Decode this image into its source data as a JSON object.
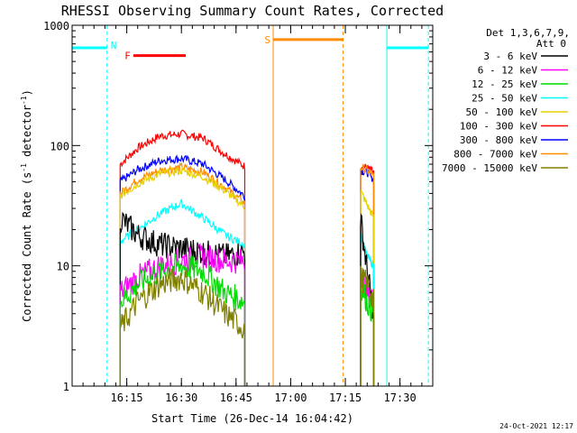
{
  "chart_data": {
    "type": "line",
    "title": "RHESSI Observing Summary Count Rates, Corrected",
    "xlabel": "Start Time (26-Dec-14 16:04:42)",
    "ylabel_main": "Corrected Count Rate (s",
    "ylabel_sup1": "-1",
    "ylabel_mid": " detector",
    "ylabel_sup2": "-1",
    "ylabel_end": ")",
    "yscale": "log",
    "ylim": [
      1,
      1000
    ],
    "xlim_minutes": [
      16.0,
      17.65
    ],
    "y_ticks": [
      {
        "v": 1,
        "label": "1"
      },
      {
        "v": 10,
        "label": "10"
      },
      {
        "v": 100,
        "label": "100"
      },
      {
        "v": 1000,
        "label": "1000"
      }
    ],
    "x_ticks": [
      {
        "v": 16.25,
        "label": "16:15"
      },
      {
        "v": 16.5,
        "label": "16:30"
      },
      {
        "v": 16.75,
        "label": "16:45"
      },
      {
        "v": 17.0,
        "label": "17:00"
      },
      {
        "v": 17.25,
        "label": "17:15"
      },
      {
        "v": 17.5,
        "label": "17:30"
      }
    ],
    "legend": {
      "header1": "Det 1,3,6,7,9,",
      "header2": "Att 0",
      "entries": [
        {
          "label": "3 - 6 keV",
          "color": "#000000"
        },
        {
          "label": "6 - 12 keV",
          "color": "#ff00ff"
        },
        {
          "label": "12 - 25 keV",
          "color": "#00dd00"
        },
        {
          "label": "25 - 50 keV",
          "color": "#00ffff"
        },
        {
          "label": "50 - 100 keV",
          "color": "#e8d000"
        },
        {
          "label": "100 - 300 keV",
          "color": "#ff0000"
        },
        {
          "label": "300 - 800 keV",
          "color": "#0000ff"
        },
        {
          "label": "800 - 7000 keV",
          "color": "#ff8c00"
        },
        {
          "label": "7000 - 15000 keV",
          "color": "#808000"
        }
      ]
    },
    "segments": [
      {
        "start": 16.22,
        "end": 16.79
      },
      {
        "start": 17.32,
        "end": 17.38
      }
    ],
    "series": [
      {
        "name": "100 - 300 keV",
        "color": "#ff0000",
        "seg1": [
          [
            16.22,
            70
          ],
          [
            16.3,
            95
          ],
          [
            16.4,
            120
          ],
          [
            16.5,
            125
          ],
          [
            16.6,
            115
          ],
          [
            16.7,
            85
          ],
          [
            16.79,
            67
          ]
        ],
        "seg2": [
          [
            17.32,
            68
          ],
          [
            17.35,
            65
          ],
          [
            17.38,
            60
          ]
        ]
      },
      {
        "name": "300 - 800 keV",
        "color": "#0000ff",
        "seg1": [
          [
            16.22,
            50
          ],
          [
            16.3,
            63
          ],
          [
            16.4,
            75
          ],
          [
            16.5,
            78
          ],
          [
            16.6,
            70
          ],
          [
            16.7,
            52
          ],
          [
            16.79,
            38
          ]
        ],
        "seg2": [
          [
            17.32,
            62
          ],
          [
            17.35,
            60
          ],
          [
            17.38,
            52
          ]
        ]
      },
      {
        "name": "800 - 7000 keV",
        "color": "#ff8c00",
        "seg1": [
          [
            16.22,
            40
          ],
          [
            16.3,
            52
          ],
          [
            16.4,
            62
          ],
          [
            16.5,
            66
          ],
          [
            16.6,
            60
          ],
          [
            16.7,
            45
          ],
          [
            16.79,
            33
          ]
        ],
        "seg2": [
          [
            17.32,
            66
          ],
          [
            17.35,
            62
          ],
          [
            17.38,
            55
          ]
        ]
      },
      {
        "name": "50 - 100 keV",
        "color": "#e8d000",
        "seg1": [
          [
            16.22,
            38
          ],
          [
            16.3,
            48
          ],
          [
            16.4,
            58
          ],
          [
            16.5,
            62
          ],
          [
            16.6,
            55
          ],
          [
            16.7,
            42
          ],
          [
            16.79,
            31
          ]
        ],
        "seg2": [
          [
            17.32,
            42
          ],
          [
            17.35,
            32
          ],
          [
            17.38,
            25
          ]
        ]
      },
      {
        "name": "25 - 50 keV",
        "color": "#00ffff",
        "seg1": [
          [
            16.22,
            16
          ],
          [
            16.3,
            20
          ],
          [
            16.4,
            27
          ],
          [
            16.5,
            33
          ],
          [
            16.6,
            25
          ],
          [
            16.7,
            18
          ],
          [
            16.79,
            15
          ]
        ],
        "seg2": [
          [
            17.32,
            18
          ],
          [
            17.35,
            12
          ],
          [
            17.38,
            10
          ]
        ]
      },
      {
        "name": "3 - 6 keV",
        "color": "#000000",
        "seg1": [
          [
            16.22,
            25
          ],
          [
            16.3,
            18
          ],
          [
            16.4,
            15
          ],
          [
            16.5,
            14
          ],
          [
            16.6,
            13
          ],
          [
            16.7,
            12
          ],
          [
            16.79,
            13
          ]
        ],
        "seg2": [
          [
            17.32,
            25
          ],
          [
            17.35,
            9
          ],
          [
            17.38,
            4
          ]
        ]
      },
      {
        "name": "6 - 12 keV",
        "color": "#ff00ff",
        "seg1": [
          [
            16.22,
            6
          ],
          [
            16.3,
            8
          ],
          [
            16.4,
            10
          ],
          [
            16.5,
            11
          ],
          [
            16.6,
            12
          ],
          [
            16.7,
            11
          ],
          [
            16.79,
            11
          ]
        ],
        "seg2": [
          [
            17.32,
            9
          ],
          [
            17.35,
            6
          ],
          [
            17.38,
            5
          ]
        ]
      },
      {
        "name": "12 - 25 keV",
        "color": "#00dd00",
        "seg1": [
          [
            16.22,
            5
          ],
          [
            16.3,
            7
          ],
          [
            16.4,
            9
          ],
          [
            16.5,
            10
          ],
          [
            16.6,
            9
          ],
          [
            16.7,
            6
          ],
          [
            16.79,
            5
          ]
        ],
        "seg2": [
          [
            17.32,
            7
          ],
          [
            17.35,
            5
          ],
          [
            17.38,
            4
          ]
        ]
      },
      {
        "name": "7000 - 15000 keV",
        "color": "#808000",
        "seg1": [
          [
            16.22,
            3
          ],
          [
            16.3,
            5
          ],
          [
            16.4,
            7
          ],
          [
            16.5,
            8
          ],
          [
            16.6,
            6
          ],
          [
            16.7,
            4
          ],
          [
            16.79,
            3
          ]
        ],
        "seg2": [
          [
            17.32,
            8
          ],
          [
            17.35,
            7
          ],
          [
            17.38,
            5
          ]
        ]
      }
    ],
    "bars": [
      {
        "label": "N",
        "color": "#00ffff",
        "start": 16.0,
        "end": 16.16,
        "y": 650,
        "dash_start": true
      },
      {
        "label": "",
        "color": "#00ffff",
        "start": 17.44,
        "end": 17.63,
        "y": 650,
        "dash_start": false
      },
      {
        "label": "F",
        "color": "#ff0000",
        "start": 16.28,
        "end": 16.52,
        "y": 560,
        "dash_start": false
      },
      {
        "label": "S",
        "color": "#ff8c00",
        "start": 16.92,
        "end": 17.24,
        "y": 760,
        "dash_start": false
      }
    ],
    "vlines": [
      {
        "x": 16.0,
        "color": "#00ffff",
        "dashed": false
      },
      {
        "x": 16.16,
        "color": "#00ffff",
        "dashed": true
      },
      {
        "x": 16.92,
        "color": "#ff8c00",
        "dashed": false
      },
      {
        "x": 17.24,
        "color": "#ff8c00",
        "dashed": true
      },
      {
        "x": 17.44,
        "color": "#00ffff",
        "dashed": false
      },
      {
        "x": 17.63,
        "color": "#00ffff",
        "dashed": true
      }
    ]
  },
  "timestamp": "24-Oct-2021 12:17"
}
